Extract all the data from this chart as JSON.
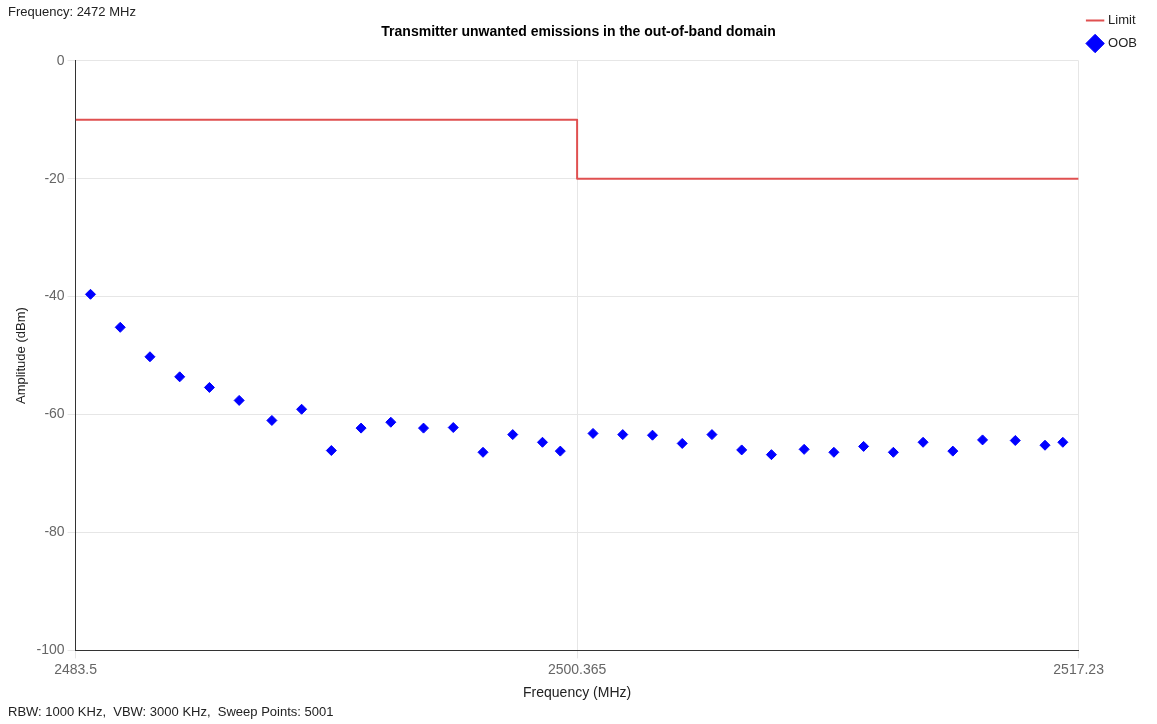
{
  "chart_data": {
    "type": "scatter",
    "title": "Transmitter unwanted emissions in the out-of-band domain",
    "xlabel": "Frequency (MHz)",
    "ylabel": "Amplitude (dBm)",
    "annotations": [
      "Frequency: 2472 MHz",
      "RBW: 1000 KHz,  VBW: 3000 KHz,  Sweep Points: 5001"
    ],
    "xlim": [
      2483.5,
      2517.23
    ],
    "xticks": [
      2483.5,
      2500.365,
      2517.23
    ],
    "ylim": [
      -100,
      0
    ],
    "yticks": [
      -100,
      -80,
      -60,
      -40,
      -20,
      0
    ],
    "grid": true,
    "legend": "top right",
    "series": [
      {
        "name": "Limit",
        "type": "line",
        "color": "#e05050",
        "x": [
          2483.5,
          2500.365,
          2500.365,
          2517.23
        ],
        "values": [
          -10,
          -10,
          -20,
          -20
        ]
      },
      {
        "name": "OOB",
        "marker": "diamond",
        "color": "#0000ff",
        "x": [
          2484.0,
          2485.0,
          2486.0,
          2487.0,
          2488.0,
          2489.0,
          2490.1,
          2491.1,
          2492.1,
          2493.1,
          2494.1,
          2495.2,
          2496.2,
          2497.2,
          2498.2,
          2499.2,
          2499.8,
          2500.9,
          2501.9,
          2502.9,
          2503.9,
          2504.9,
          2505.9,
          2506.9,
          2508.0,
          2509.0,
          2510.0,
          2511.0,
          2512.0,
          2513.0,
          2514.0,
          2515.1,
          2516.1,
          2516.7
        ],
        "values": [
          -39.6,
          -45.2,
          -50.2,
          -53.6,
          -55.4,
          -57.6,
          -61.0,
          -59.1,
          -66.1,
          -62.3,
          -61.3,
          -62.3,
          -62.2,
          -66.4,
          -63.4,
          -64.7,
          -66.2,
          -63.2,
          -63.4,
          -63.5,
          -64.9,
          -63.4,
          -66.0,
          -66.8,
          -65.9,
          -66.4,
          -65.4,
          -66.4,
          -64.7,
          -66.2,
          -64.3,
          -64.4,
          -65.2,
          -64.7
        ]
      }
    ]
  }
}
